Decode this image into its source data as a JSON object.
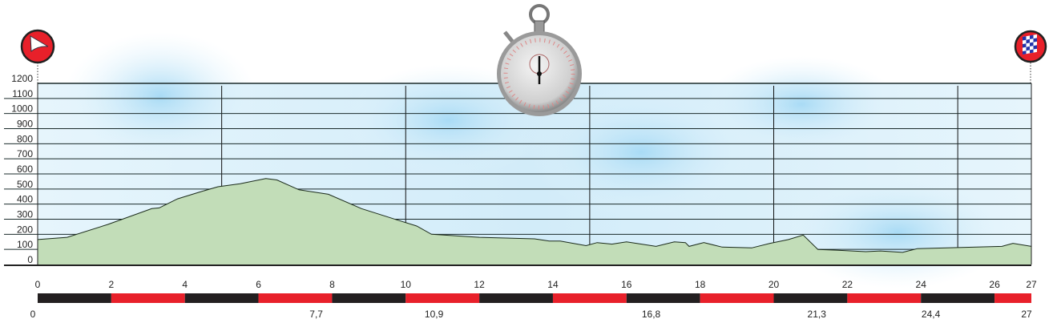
{
  "chart_data": {
    "type": "area",
    "title": "",
    "xlabel": "",
    "ylabel": "",
    "xlim": [
      0,
      27
    ],
    "ylim": [
      0,
      1200
    ],
    "grid": true,
    "y_ticks": [
      0,
      100,
      200,
      300,
      400,
      500,
      600,
      700,
      800,
      900,
      1000,
      1100,
      1200
    ],
    "x_gridlines_km": [
      5,
      10,
      15,
      20,
      25
    ],
    "x_ticks": [
      "0",
      "2",
      "4",
      "6",
      "8",
      "10",
      "12",
      "14",
      "16",
      "18",
      "20",
      "22",
      "24",
      "26",
      "27"
    ],
    "x_tick_values": [
      0,
      2,
      4,
      6,
      8,
      10,
      12,
      14,
      16,
      18,
      20,
      22,
      24,
      26,
      27
    ],
    "markers": [
      {
        "km": 0,
        "label": "0"
      },
      {
        "km": 7.7,
        "label": "7,7"
      },
      {
        "km": 10.9,
        "label": "10,9"
      },
      {
        "km": 16.8,
        "label": "16,8"
      },
      {
        "km": 21.3,
        "label": "21,3"
      },
      {
        "km": 24.4,
        "label": "24,4"
      },
      {
        "km": 27,
        "label": "27"
      }
    ],
    "profile": {
      "x": [
        0,
        0.8,
        1.9,
        3.1,
        3.3,
        3.8,
        4.4,
        4.9,
        5.5,
        6.2,
        6.5,
        7.1,
        7.9,
        8.8,
        9.9,
        10.3,
        10.7,
        12.0,
        13.5,
        13.9,
        14.2,
        14.9,
        15.2,
        15.6,
        16.0,
        16.8,
        17.3,
        17.6,
        17.7,
        18.1,
        18.6,
        19.4,
        19.9,
        20.4,
        20.8,
        21.2,
        21.7,
        22.5,
        22.9,
        23.5,
        23.9,
        24.7,
        26.2,
        26.5,
        27
      ],
      "y": [
        165,
        180,
        265,
        370,
        375,
        435,
        480,
        515,
        535,
        570,
        560,
        495,
        465,
        370,
        285,
        255,
        200,
        180,
        170,
        155,
        155,
        125,
        145,
        135,
        150,
        120,
        150,
        145,
        120,
        145,
        115,
        110,
        140,
        165,
        195,
        100,
        95,
        85,
        90,
        80,
        105,
        110,
        120,
        140,
        120
      ]
    },
    "colors": {
      "fill": "#c2ddb8",
      "line": "#1a2a1a",
      "sky": "#bfe3f7",
      "bar_red": "#e8202a",
      "bar_black": "#231f20"
    }
  },
  "icons": {
    "start": "start-flag-icon",
    "finish": "checkered-flag-icon",
    "timing": "stopwatch-icon"
  }
}
